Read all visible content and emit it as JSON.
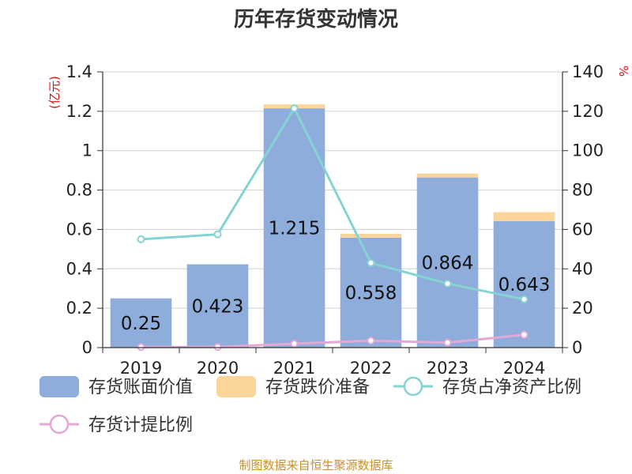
{
  "chart_data": {
    "type": "bar",
    "title": "历年存货变动情况",
    "categories": [
      "2019",
      "2020",
      "2021",
      "2022",
      "2023",
      "2024"
    ],
    "y_left": {
      "unit": "(亿元)",
      "ticks": [
        "0",
        "0.2",
        "0.4",
        "0.6",
        "0.8",
        "1",
        "1.2",
        "1.4"
      ],
      "range": [
        0,
        1.4
      ]
    },
    "y_right": {
      "unit": "%",
      "ticks": [
        "0",
        "20",
        "40",
        "60",
        "80",
        "100",
        "120",
        "140"
      ],
      "range": [
        0,
        140
      ]
    },
    "series": [
      {
        "name": "存货账面价值",
        "kind": "bar",
        "axis": "left",
        "color": "#8eadda",
        "values": [
          0.25,
          0.423,
          1.215,
          0.558,
          0.864,
          0.643
        ],
        "labels": [
          "0.25",
          "0.423",
          "1.215",
          "0.558",
          "0.864",
          "0.643"
        ]
      },
      {
        "name": "存货跌价准备",
        "kind": "bar-stacked",
        "axis": "left",
        "color": "#fcd59a",
        "values": [
          0,
          0,
          0.02,
          0.02,
          0.02,
          0.045
        ]
      },
      {
        "name": "存货占净资产比例",
        "kind": "line",
        "axis": "right",
        "color": "#86d3d3",
        "values": [
          55,
          57.5,
          121.5,
          43,
          32.5,
          24.5
        ]
      },
      {
        "name": "存货计提比例",
        "kind": "line",
        "axis": "right",
        "color": "#e2a8d6",
        "values": [
          0.3,
          0.3,
          2,
          3.5,
          2.5,
          6.5
        ]
      }
    ],
    "legend_position": "bottom",
    "grid": true,
    "source": "制图数据来自恒生聚源数据库"
  }
}
